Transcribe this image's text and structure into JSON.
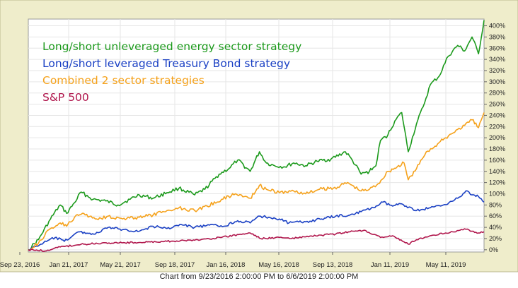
{
  "chart_data": {
    "type": "line",
    "footer": "Chart from 9/23/2016 2:00:00 PM to 6/6/2019 2:00:00 PM",
    "x_ticks": [
      "Sep 23, 2016",
      "Jan 21, 2017",
      "May 21, 2017",
      "Sep 18, 2017",
      "Jan 16, 2018",
      "May 16, 2018",
      "Sep 13, 2018",
      "Jan 11, 2019",
      "May 11, 2019"
    ],
    "y_ticks": [
      "0%",
      "20%",
      "40%",
      "60%",
      "80%",
      "100%",
      "120%",
      "140%",
      "160%",
      "180%",
      "200%",
      "220%",
      "240%",
      "260%",
      "280%",
      "300%",
      "320%",
      "340%",
      "360%",
      "380%",
      "400%"
    ],
    "ylim": [
      -4,
      412
    ],
    "y_unit": "%",
    "x_range": [
      "2016-09-23",
      "2019-06-06"
    ],
    "grid": true,
    "legend_position": "top-left",
    "colors": {
      "frame_bg": "#efedcb",
      "frame_border": "#b9b78c",
      "plot_bg": "#ffffff",
      "grid": "#e6e6e6"
    },
    "series": [
      {
        "name": "Long/short unleveraged energy sector strategy",
        "color": "#1c9a1c",
        "points": [
          [
            "2016-09-23",
            0
          ],
          [
            "2016-10-15",
            18
          ],
          [
            "2016-11-10",
            55
          ],
          [
            "2016-12-01",
            80
          ],
          [
            "2016-12-15",
            65
          ],
          [
            "2017-01-01",
            84
          ],
          [
            "2017-01-15",
            103
          ],
          [
            "2017-02-10",
            90
          ],
          [
            "2017-03-10",
            87
          ],
          [
            "2017-04-05",
            80
          ],
          [
            "2017-05-01",
            90
          ],
          [
            "2017-05-21",
            98
          ],
          [
            "2017-06-20",
            92
          ],
          [
            "2017-07-20",
            102
          ],
          [
            "2017-08-15",
            110
          ],
          [
            "2017-09-18",
            98
          ],
          [
            "2017-10-10",
            108
          ],
          [
            "2017-11-10",
            135
          ],
          [
            "2017-12-01",
            145
          ],
          [
            "2017-12-20",
            160
          ],
          [
            "2018-01-16",
            140
          ],
          [
            "2018-02-05",
            175
          ],
          [
            "2018-02-20",
            155
          ],
          [
            "2018-03-10",
            150
          ],
          [
            "2018-04-01",
            148
          ],
          [
            "2018-04-20",
            155
          ],
          [
            "2018-05-16",
            150
          ],
          [
            "2018-06-10",
            158
          ],
          [
            "2018-07-10",
            162
          ],
          [
            "2018-08-10",
            175
          ],
          [
            "2018-08-25",
            160
          ],
          [
            "2018-09-13",
            135
          ],
          [
            "2018-10-01",
            140
          ],
          [
            "2018-10-15",
            150
          ],
          [
            "2018-10-25",
            195
          ],
          [
            "2018-11-10",
            205
          ],
          [
            "2018-11-25",
            230
          ],
          [
            "2018-12-10",
            245
          ],
          [
            "2018-12-24",
            175
          ],
          [
            "2019-01-11",
            225
          ],
          [
            "2019-01-25",
            255
          ],
          [
            "2019-02-10",
            295
          ],
          [
            "2019-03-01",
            310
          ],
          [
            "2019-03-20",
            345
          ],
          [
            "2019-04-10",
            365
          ],
          [
            "2019-04-25",
            355
          ],
          [
            "2019-05-11",
            380
          ],
          [
            "2019-05-25",
            350
          ],
          [
            "2019-06-06",
            410
          ]
        ]
      },
      {
        "name": "Long/short leveraged Treasury Bond strategy",
        "color": "#1a40c4",
        "points": [
          [
            "2016-09-23",
            0
          ],
          [
            "2016-10-20",
            10
          ],
          [
            "2016-11-20",
            22
          ],
          [
            "2016-12-10",
            15
          ],
          [
            "2017-01-10",
            32
          ],
          [
            "2017-02-15",
            28
          ],
          [
            "2017-03-15",
            40
          ],
          [
            "2017-04-15",
            36
          ],
          [
            "2017-05-21",
            33
          ],
          [
            "2017-06-20",
            42
          ],
          [
            "2017-07-20",
            38
          ],
          [
            "2017-08-20",
            45
          ],
          [
            "2017-09-18",
            40
          ],
          [
            "2017-10-20",
            44
          ],
          [
            "2017-11-20",
            42
          ],
          [
            "2017-12-20",
            52
          ],
          [
            "2018-01-16",
            48
          ],
          [
            "2018-02-05",
            60
          ],
          [
            "2018-02-25",
            58
          ],
          [
            "2018-03-20",
            55
          ],
          [
            "2018-04-10",
            48
          ],
          [
            "2018-05-16",
            50
          ],
          [
            "2018-06-20",
            55
          ],
          [
            "2018-07-20",
            60
          ],
          [
            "2018-08-20",
            62
          ],
          [
            "2018-09-13",
            68
          ],
          [
            "2018-10-10",
            75
          ],
          [
            "2018-10-30",
            85
          ],
          [
            "2018-11-20",
            78
          ],
          [
            "2018-12-10",
            82
          ],
          [
            "2019-01-11",
            70
          ],
          [
            "2019-02-10",
            75
          ],
          [
            "2019-03-10",
            80
          ],
          [
            "2019-04-10",
            92
          ],
          [
            "2019-05-01",
            105
          ],
          [
            "2019-05-11",
            98
          ],
          [
            "2019-05-25",
            95
          ],
          [
            "2019-06-06",
            85
          ]
        ]
      },
      {
        "name": "Combined 2 sector strategies",
        "color": "#f5a21c",
        "points": [
          [
            "2016-09-23",
            0
          ],
          [
            "2016-10-15",
            12
          ],
          [
            "2016-11-10",
            38
          ],
          [
            "2016-12-01",
            48
          ],
          [
            "2016-12-15",
            42
          ],
          [
            "2017-01-01",
            58
          ],
          [
            "2017-01-21",
            65
          ],
          [
            "2017-02-15",
            55
          ],
          [
            "2017-03-15",
            60
          ],
          [
            "2017-04-15",
            55
          ],
          [
            "2017-05-21",
            58
          ],
          [
            "2017-06-20",
            62
          ],
          [
            "2017-07-20",
            70
          ],
          [
            "2017-08-15",
            75
          ],
          [
            "2017-09-18",
            70
          ],
          [
            "2017-10-15",
            78
          ],
          [
            "2017-11-15",
            90
          ],
          [
            "2017-12-15",
            100
          ],
          [
            "2018-01-16",
            92
          ],
          [
            "2018-02-05",
            115
          ],
          [
            "2018-02-20",
            108
          ],
          [
            "2018-03-20",
            102
          ],
          [
            "2018-04-20",
            105
          ],
          [
            "2018-05-16",
            100
          ],
          [
            "2018-06-15",
            108
          ],
          [
            "2018-07-15",
            110
          ],
          [
            "2018-08-15",
            120
          ],
          [
            "2018-09-13",
            105
          ],
          [
            "2018-10-01",
            108
          ],
          [
            "2018-10-20",
            118
          ],
          [
            "2018-11-10",
            140
          ],
          [
            "2018-11-30",
            148
          ],
          [
            "2018-12-15",
            155
          ],
          [
            "2018-12-24",
            125
          ],
          [
            "2019-01-11",
            145
          ],
          [
            "2019-02-01",
            175
          ],
          [
            "2019-02-20",
            185
          ],
          [
            "2019-03-15",
            200
          ],
          [
            "2019-04-10",
            215
          ],
          [
            "2019-04-25",
            222
          ],
          [
            "2019-05-11",
            232
          ],
          [
            "2019-05-25",
            218
          ],
          [
            "2019-06-06",
            245
          ]
        ]
      },
      {
        "name": "S&P 500",
        "color": "#b0164c",
        "points": [
          [
            "2016-09-23",
            0
          ],
          [
            "2016-11-01",
            -2
          ],
          [
            "2016-12-01",
            5
          ],
          [
            "2017-01-21",
            10
          ],
          [
            "2017-03-01",
            12
          ],
          [
            "2017-05-21",
            13
          ],
          [
            "2017-07-20",
            15
          ],
          [
            "2017-09-18",
            17
          ],
          [
            "2017-11-15",
            22
          ],
          [
            "2018-01-16",
            30
          ],
          [
            "2018-02-08",
            20
          ],
          [
            "2018-03-20",
            22
          ],
          [
            "2018-04-15",
            20
          ],
          [
            "2018-05-16",
            23
          ],
          [
            "2018-06-20",
            26
          ],
          [
            "2018-07-20",
            28
          ],
          [
            "2018-08-20",
            32
          ],
          [
            "2018-09-20",
            35
          ],
          [
            "2018-10-25",
            22
          ],
          [
            "2018-11-20",
            25
          ],
          [
            "2018-12-24",
            10
          ],
          [
            "2019-01-11",
            18
          ],
          [
            "2019-02-15",
            26
          ],
          [
            "2019-03-15",
            30
          ],
          [
            "2019-04-15",
            35
          ],
          [
            "2019-05-01",
            37
          ],
          [
            "2019-05-11",
            33
          ],
          [
            "2019-05-25",
            30
          ],
          [
            "2019-06-06",
            32
          ]
        ]
      }
    ]
  }
}
